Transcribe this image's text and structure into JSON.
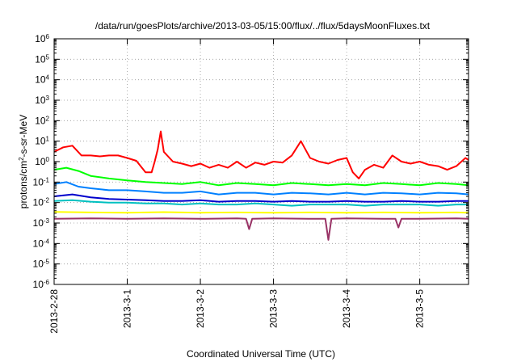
{
  "chart_data": {
    "type": "line",
    "title": "/data/run/goesPlots/archive/2013-03-05/15:00/flux/../flux/5daysMoonFluxes.txt",
    "xlabel": "Coordinated Universal Time (UTC)",
    "ylabel": "protons/cm²-s-sr-MeV",
    "ylabel_parts": {
      "pre": "protons/cm",
      "sup": "2",
      "post": "-s-sr-MeV"
    },
    "y_scale": "log",
    "ylim": [
      1e-06,
      1000000.0
    ],
    "xlim": [
      "2013-02-28T00:00",
      "2013-03-05T16:00"
    ],
    "grid": true,
    "y_ticks": [
      {
        "value": 1e-06,
        "base": "10",
        "exp": "-6"
      },
      {
        "value": 1e-05,
        "base": "10",
        "exp": "-5"
      },
      {
        "value": 0.0001,
        "base": "10",
        "exp": "-4"
      },
      {
        "value": 0.001,
        "base": "10",
        "exp": "-3"
      },
      {
        "value": 0.01,
        "base": "10",
        "exp": "-2"
      },
      {
        "value": 0.1,
        "base": "10",
        "exp": "-1"
      },
      {
        "value": 1,
        "base": "10",
        "exp": "0"
      },
      {
        "value": 10.0,
        "base": "10",
        "exp": "1"
      },
      {
        "value": 100.0,
        "base": "10",
        "exp": "2"
      },
      {
        "value": 1000.0,
        "base": "10",
        "exp": "3"
      },
      {
        "value": 10000.0,
        "base": "10",
        "exp": "4"
      },
      {
        "value": 100000.0,
        "base": "10",
        "exp": "5"
      },
      {
        "value": 1000000.0,
        "base": "10",
        "exp": "6"
      }
    ],
    "x_ticks": [
      {
        "date": "2013-02-28T00:00",
        "label": "2013-2-28"
      },
      {
        "date": "2013-03-01T00:00",
        "label": "2013-3-1"
      },
      {
        "date": "2013-03-02T00:00",
        "label": "2013-3-2"
      },
      {
        "date": "2013-03-03T00:00",
        "label": "2013-3-3"
      },
      {
        "date": "2013-03-04T00:00",
        "label": "2013-3-4"
      },
      {
        "date": "2013-03-05T00:00",
        "label": "2013-3-5"
      }
    ],
    "series": [
      {
        "color": "#ff0000",
        "x": [
          "2013-02-28T00:00",
          "2013-02-28T03:00",
          "2013-02-28T06:00",
          "2013-02-28T09:00",
          "2013-02-28T12:00",
          "2013-02-28T15:00",
          "2013-02-28T18:00",
          "2013-02-28T21:00",
          "2013-03-01T00:00",
          "2013-03-01T03:00",
          "2013-03-01T06:00",
          "2013-03-01T08:00",
          "2013-03-01T09:00",
          "2013-03-01T10:00",
          "2013-03-01T11:00",
          "2013-03-01T12:00",
          "2013-03-01T15:00",
          "2013-03-01T18:00",
          "2013-03-01T21:00",
          "2013-03-02T00:00",
          "2013-03-02T03:00",
          "2013-03-02T06:00",
          "2013-03-02T09:00",
          "2013-03-02T12:00",
          "2013-03-02T15:00",
          "2013-03-02T18:00",
          "2013-03-02T21:00",
          "2013-03-03T00:00",
          "2013-03-03T03:00",
          "2013-03-03T06:00",
          "2013-03-03T09:00",
          "2013-03-03T12:00",
          "2013-03-03T15:00",
          "2013-03-03T18:00",
          "2013-03-03T21:00",
          "2013-03-04T00:00",
          "2013-03-04T02:00",
          "2013-03-04T04:00",
          "2013-03-04T06:00",
          "2013-03-04T09:00",
          "2013-03-04T12:00",
          "2013-03-04T15:00",
          "2013-03-04T18:00",
          "2013-03-04T21:00",
          "2013-03-05T00:00",
          "2013-03-05T03:00",
          "2013-03-05T06:00",
          "2013-03-05T09:00",
          "2013-03-05T12:00",
          "2013-03-05T15:00",
          "2013-03-05T16:00"
        ],
        "y": [
          3,
          5,
          6,
          2,
          2,
          1.8,
          2,
          2,
          1.5,
          1.1,
          0.3,
          0.3,
          1,
          4,
          30,
          3,
          1,
          0.8,
          0.6,
          0.8,
          0.5,
          0.7,
          0.5,
          1,
          0.5,
          0.9,
          0.7,
          1,
          0.9,
          2,
          10,
          1.5,
          1,
          0.8,
          1.2,
          1.5,
          0.3,
          0.15,
          0.4,
          0.7,
          0.5,
          2,
          1,
          0.8,
          1,
          0.7,
          0.6,
          0.4,
          0.6,
          1.5,
          1.2
        ]
      },
      {
        "color": "#00ff00",
        "x": [
          "2013-02-28T00:00",
          "2013-02-28T04:00",
          "2013-02-28T08:00",
          "2013-02-28T12:00",
          "2013-02-28T18:00",
          "2013-03-01T00:00",
          "2013-03-01T06:00",
          "2013-03-01T12:00",
          "2013-03-01T18:00",
          "2013-03-02T00:00",
          "2013-03-02T06:00",
          "2013-03-02T12:00",
          "2013-03-02T18:00",
          "2013-03-03T00:00",
          "2013-03-03T06:00",
          "2013-03-03T12:00",
          "2013-03-03T18:00",
          "2013-03-04T00:00",
          "2013-03-04T06:00",
          "2013-03-04T12:00",
          "2013-03-04T18:00",
          "2013-03-05T00:00",
          "2013-03-05T06:00",
          "2013-03-05T12:00",
          "2013-03-05T16:00"
        ],
        "y": [
          0.4,
          0.5,
          0.35,
          0.2,
          0.15,
          0.12,
          0.1,
          0.09,
          0.08,
          0.1,
          0.07,
          0.09,
          0.08,
          0.07,
          0.09,
          0.08,
          0.07,
          0.08,
          0.07,
          0.09,
          0.08,
          0.07,
          0.09,
          0.08,
          0.07
        ]
      },
      {
        "color": "#0080ff",
        "x": [
          "2013-02-28T00:00",
          "2013-02-28T04:00",
          "2013-02-28T08:00",
          "2013-02-28T12:00",
          "2013-02-28T18:00",
          "2013-03-01T00:00",
          "2013-03-01T06:00",
          "2013-03-01T12:00",
          "2013-03-01T18:00",
          "2013-03-02T00:00",
          "2013-03-02T06:00",
          "2013-03-02T12:00",
          "2013-03-02T18:00",
          "2013-03-03T00:00",
          "2013-03-03T06:00",
          "2013-03-03T12:00",
          "2013-03-03T18:00",
          "2013-03-04T00:00",
          "2013-03-04T06:00",
          "2013-03-04T12:00",
          "2013-03-04T18:00",
          "2013-03-05T00:00",
          "2013-03-05T06:00",
          "2013-03-05T12:00",
          "2013-03-05T16:00"
        ],
        "y": [
          0.08,
          0.1,
          0.06,
          0.05,
          0.04,
          0.04,
          0.035,
          0.03,
          0.03,
          0.035,
          0.025,
          0.03,
          0.03,
          0.025,
          0.03,
          0.028,
          0.025,
          0.03,
          0.025,
          0.03,
          0.028,
          0.025,
          0.03,
          0.028,
          0.025
        ]
      },
      {
        "color": "#00c0c0",
        "x": [
          "2013-02-28T00:00",
          "2013-02-28T06:00",
          "2013-02-28T12:00",
          "2013-02-28T18:00",
          "2013-03-01T00:00",
          "2013-03-01T06:00",
          "2013-03-01T12:00",
          "2013-03-01T18:00",
          "2013-03-02T00:00",
          "2013-03-02T06:00",
          "2013-03-02T12:00",
          "2013-03-02T18:00",
          "2013-03-03T00:00",
          "2013-03-03T06:00",
          "2013-03-03T12:00",
          "2013-03-03T18:00",
          "2013-03-04T00:00",
          "2013-03-04T06:00",
          "2013-03-04T12:00",
          "2013-03-04T18:00",
          "2013-03-05T00:00",
          "2013-03-05T06:00",
          "2013-03-05T12:00",
          "2013-03-05T16:00"
        ],
        "y": [
          0.012,
          0.013,
          0.011,
          0.01,
          0.01,
          0.009,
          0.009,
          0.008,
          0.009,
          0.008,
          0.008,
          0.009,
          0.008,
          0.007,
          0.008,
          0.008,
          0.008,
          0.007,
          0.008,
          0.008,
          0.008,
          0.007,
          0.008,
          0.008
        ]
      },
      {
        "color": "#0000cc",
        "x": [
          "2013-02-28T00:00",
          "2013-02-28T06:00",
          "2013-02-28T12:00",
          "2013-02-28T18:00",
          "2013-03-01T00:00",
          "2013-03-01T06:00",
          "2013-03-01T12:00",
          "2013-03-01T18:00",
          "2013-03-02T00:00",
          "2013-03-02T06:00",
          "2013-03-02T12:00",
          "2013-03-02T18:00",
          "2013-03-03T00:00",
          "2013-03-03T06:00",
          "2013-03-03T12:00",
          "2013-03-03T18:00",
          "2013-03-04T00:00",
          "2013-03-04T06:00",
          "2013-03-04T12:00",
          "2013-03-04T18:00",
          "2013-03-05T00:00",
          "2013-03-05T06:00",
          "2013-03-05T12:00",
          "2013-03-05T16:00"
        ],
        "y": [
          0.02,
          0.025,
          0.018,
          0.015,
          0.014,
          0.013,
          0.012,
          0.012,
          0.013,
          0.011,
          0.012,
          0.012,
          0.011,
          0.012,
          0.011,
          0.011,
          0.012,
          0.011,
          0.011,
          0.012,
          0.011,
          0.011,
          0.012,
          0.012
        ]
      },
      {
        "color": "#ffff00",
        "x": [
          "2013-02-28T00:00",
          "2013-02-28T12:00",
          "2013-03-01T00:00",
          "2013-03-01T12:00",
          "2013-03-02T00:00",
          "2013-03-02T12:00",
          "2013-03-03T00:00",
          "2013-03-03T12:00",
          "2013-03-04T00:00",
          "2013-03-04T12:00",
          "2013-03-05T00:00",
          "2013-03-05T12:00",
          "2013-03-05T16:00"
        ],
        "y": [
          0.0035,
          0.0033,
          0.0032,
          0.0034,
          0.0032,
          0.0033,
          0.0032,
          0.0033,
          0.0032,
          0.0033,
          0.0032,
          0.0033,
          0.0032
        ]
      },
      {
        "color": "#993366",
        "x": [
          "2013-02-28T00:00",
          "2013-02-28T12:00",
          "2013-03-01T00:00",
          "2013-03-01T12:00",
          "2013-03-02T00:00",
          "2013-03-02T12:00",
          "2013-03-02T15:00",
          "2013-03-02T16:00",
          "2013-03-02T17:00",
          "2013-03-03T00:00",
          "2013-03-03T12:00",
          "2013-03-03T17:00",
          "2013-03-03T18:00",
          "2013-03-03T19:00",
          "2013-03-04T00:00",
          "2013-03-04T12:00",
          "2013-03-04T16:00",
          "2013-03-04T17:00",
          "2013-03-04T18:00",
          "2013-03-05T00:00",
          "2013-03-05T12:00",
          "2013-03-05T16:00"
        ],
        "y": [
          0.0016,
          0.0017,
          0.0016,
          0.0017,
          0.0016,
          0.0017,
          0.0016,
          0.0005,
          0.0016,
          0.0017,
          0.0016,
          0.0016,
          0.00015,
          0.0016,
          0.0017,
          0.0016,
          0.0016,
          0.0006,
          0.0016,
          0.0016,
          0.0017,
          0.0016
        ]
      }
    ]
  }
}
